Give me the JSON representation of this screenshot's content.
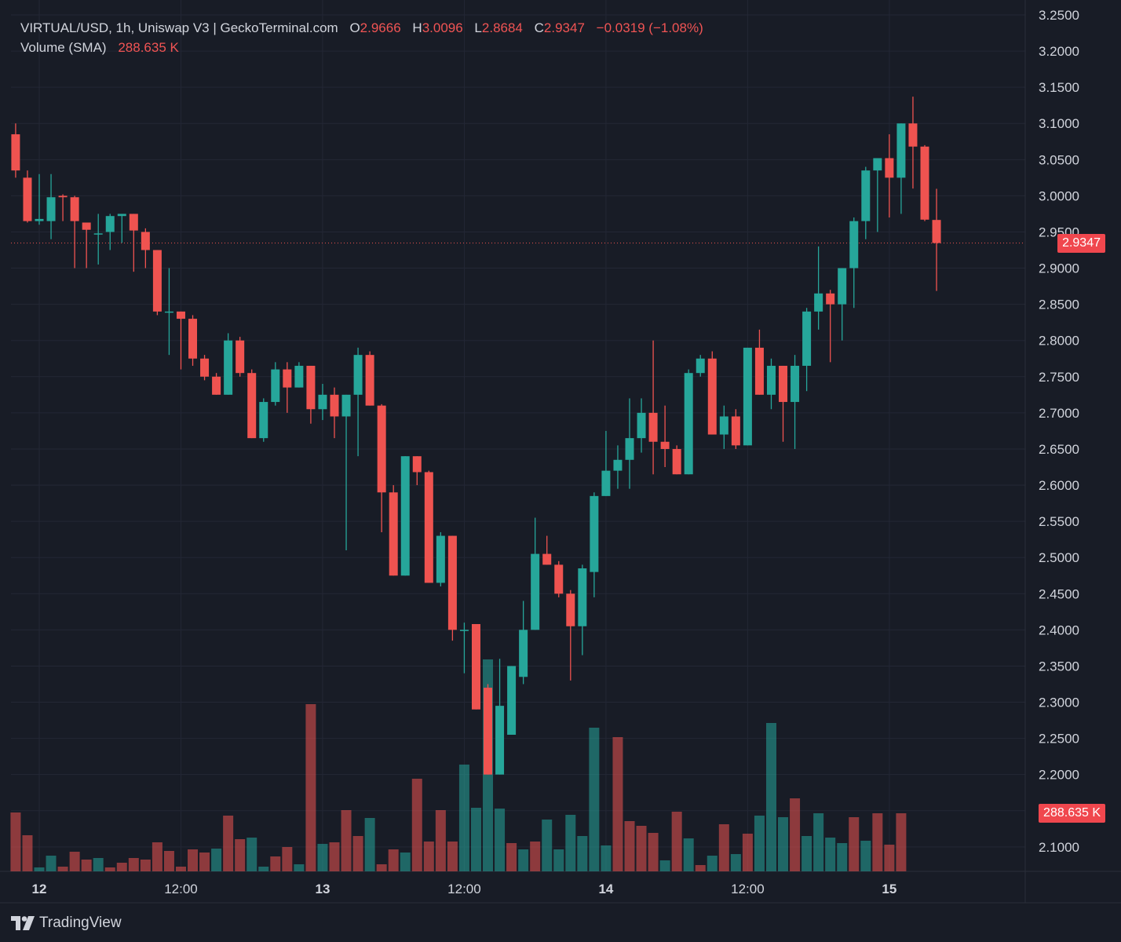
{
  "legend": {
    "title": "VIRTUAL/USD, 1h, Uniswap V3 | GeckoTerminal.com",
    "open_label": "O",
    "open_value": "2.9666",
    "high_label": "H",
    "high_value": "3.0096",
    "low_label": "L",
    "low_value": "2.8684",
    "close_label": "C",
    "close_value": "2.9347",
    "change": "−0.0319 (−1.08%)",
    "volume_label": "Volume (SMA)",
    "volume_value": "288.635 K"
  },
  "price_tag": "2.9347",
  "volume_tag": "288.635 K",
  "footer": {
    "brand": "TradingView",
    "logo_icon": "tradingview-logo-icon"
  },
  "colors": {
    "up": "#26a69a",
    "down": "#ef5350",
    "background": "#181c26",
    "grid": "#232735"
  },
  "chart_data": {
    "type": "candlestick",
    "symbol": "VIRTUAL/USD",
    "interval": "1h",
    "y_axis": {
      "range": [
        2.06,
        3.26
      ],
      "tick_labels": [
        "3.2500",
        "3.2000",
        "3.1500",
        "3.1000",
        "3.0500",
        "3.0000",
        "2.9500",
        "2.9000",
        "2.8500",
        "2.8000",
        "2.7500",
        "2.7000",
        "2.6500",
        "2.6000",
        "2.5500",
        "2.5000",
        "2.4500",
        "2.4000",
        "2.3500",
        "2.3000",
        "2.2500",
        "2.2000",
        "2.1500",
        "2.1000"
      ]
    },
    "x_axis": {
      "tick_labels": [
        "12",
        "12:00",
        "13",
        "12:00",
        "14",
        "12:00",
        "15"
      ],
      "tick_hours": [
        0,
        12,
        24,
        36,
        48,
        60,
        72
      ]
    },
    "grid": true,
    "last_price_line": 2.9347,
    "candles": [
      {
        "h": -2,
        "o": 3.085,
        "hi": 3.1,
        "lo": 3.025,
        "c": 3.035
      },
      {
        "h": -1,
        "o": 3.025,
        "hi": 3.035,
        "lo": 2.963,
        "c": 2.965
      },
      {
        "h": 0,
        "o": 2.965,
        "hi": 3.03,
        "lo": 2.96,
        "c": 2.968
      },
      {
        "h": 1,
        "o": 2.965,
        "hi": 3.03,
        "lo": 2.94,
        "c": 2.998
      },
      {
        "h": 2,
        "o": 3.0,
        "hi": 3.002,
        "lo": 2.965,
        "c": 2.998
      },
      {
        "h": 3,
        "o": 2.998,
        "hi": 3.0,
        "lo": 2.9,
        "c": 2.965
      },
      {
        "h": 4,
        "o": 2.963,
        "hi": 2.96,
        "lo": 2.9,
        "c": 2.953
      },
      {
        "h": 5,
        "o": 2.948,
        "hi": 2.975,
        "lo": 2.905,
        "c": 2.948
      },
      {
        "h": 6,
        "o": 2.95,
        "hi": 2.975,
        "lo": 2.925,
        "c": 2.972
      },
      {
        "h": 7,
        "o": 2.972,
        "hi": 2.975,
        "lo": 2.935,
        "c": 2.975
      },
      {
        "h": 8,
        "o": 2.975,
        "hi": 2.975,
        "lo": 2.895,
        "c": 2.952
      },
      {
        "h": 9,
        "o": 2.95,
        "hi": 2.955,
        "lo": 2.9,
        "c": 2.925
      },
      {
        "h": 10,
        "o": 2.925,
        "hi": 2.925,
        "lo": 2.835,
        "c": 2.84
      },
      {
        "h": 11,
        "o": 2.84,
        "hi": 2.9,
        "lo": 2.78,
        "c": 2.84
      },
      {
        "h": 12,
        "o": 2.84,
        "hi": 2.84,
        "lo": 2.76,
        "c": 2.83
      },
      {
        "h": 13,
        "o": 2.83,
        "hi": 2.835,
        "lo": 2.765,
        "c": 2.775
      },
      {
        "h": 14,
        "o": 2.775,
        "hi": 2.78,
        "lo": 2.745,
        "c": 2.75
      },
      {
        "h": 15,
        "o": 2.75,
        "hi": 2.755,
        "lo": 2.725,
        "c": 2.725
      },
      {
        "h": 16,
        "o": 2.725,
        "hi": 2.81,
        "lo": 2.725,
        "c": 2.8
      },
      {
        "h": 17,
        "o": 2.8,
        "hi": 2.805,
        "lo": 2.75,
        "c": 2.755
      },
      {
        "h": 18,
        "o": 2.755,
        "hi": 2.76,
        "lo": 2.665,
        "c": 2.665
      },
      {
        "h": 19,
        "o": 2.665,
        "hi": 2.72,
        "lo": 2.66,
        "c": 2.715
      },
      {
        "h": 20,
        "o": 2.715,
        "hi": 2.77,
        "lo": 2.71,
        "c": 2.76
      },
      {
        "h": 21,
        "o": 2.76,
        "hi": 2.77,
        "lo": 2.7,
        "c": 2.735
      },
      {
        "h": 22,
        "o": 2.735,
        "hi": 2.77,
        "lo": 2.735,
        "c": 2.765
      },
      {
        "h": 23,
        "o": 2.765,
        "hi": 2.765,
        "lo": 2.685,
        "c": 2.705
      },
      {
        "h": 24,
        "o": 2.705,
        "hi": 2.74,
        "lo": 2.69,
        "c": 2.725
      },
      {
        "h": 25,
        "o": 2.725,
        "hi": 2.735,
        "lo": 2.665,
        "c": 2.695
      },
      {
        "h": 26,
        "o": 2.695,
        "hi": 2.725,
        "lo": 2.51,
        "c": 2.725
      },
      {
        "h": 27,
        "o": 2.725,
        "hi": 2.79,
        "lo": 2.64,
        "c": 2.78
      },
      {
        "h": 28,
        "o": 2.78,
        "hi": 2.785,
        "lo": 2.71,
        "c": 2.71
      },
      {
        "h": 29,
        "o": 2.71,
        "hi": 2.712,
        "lo": 2.535,
        "c": 2.59
      },
      {
        "h": 30,
        "o": 2.59,
        "hi": 2.6,
        "lo": 2.475,
        "c": 2.475
      },
      {
        "h": 31,
        "o": 2.475,
        "hi": 2.64,
        "lo": 2.475,
        "c": 2.64
      },
      {
        "h": 32,
        "o": 2.64,
        "hi": 2.64,
        "lo": 2.6,
        "c": 2.618
      },
      {
        "h": 33,
        "o": 2.618,
        "hi": 2.62,
        "lo": 2.465,
        "c": 2.465
      },
      {
        "h": 34,
        "o": 2.465,
        "hi": 2.535,
        "lo": 2.46,
        "c": 2.53
      },
      {
        "h": 35,
        "o": 2.53,
        "hi": 2.53,
        "lo": 2.385,
        "c": 2.4
      },
      {
        "h": 36,
        "o": 2.4,
        "hi": 2.41,
        "lo": 2.34,
        "c": 2.4
      },
      {
        "h": 37,
        "o": 2.408,
        "hi": 2.408,
        "lo": 2.29,
        "c": 2.29
      },
      {
        "h": 38,
        "o": 2.32,
        "hi": 2.325,
        "lo": 2.2,
        "c": 2.2
      },
      {
        "h": 39,
        "o": 2.2,
        "hi": 2.36,
        "lo": 2.2,
        "c": 2.295
      },
      {
        "h": 40,
        "o": 2.255,
        "hi": 2.35,
        "lo": 2.255,
        "c": 2.35
      },
      {
        "h": 41,
        "o": 2.335,
        "hi": 2.44,
        "lo": 2.325,
        "c": 2.4
      },
      {
        "h": 42,
        "o": 2.4,
        "hi": 2.555,
        "lo": 2.4,
        "c": 2.505
      },
      {
        "h": 43,
        "o": 2.505,
        "hi": 2.53,
        "lo": 2.49,
        "c": 2.49
      },
      {
        "h": 44,
        "o": 2.49,
        "hi": 2.495,
        "lo": 2.445,
        "c": 2.45
      },
      {
        "h": 45,
        "o": 2.45,
        "hi": 2.455,
        "lo": 2.33,
        "c": 2.405
      },
      {
        "h": 46,
        "o": 2.405,
        "hi": 2.49,
        "lo": 2.365,
        "c": 2.485
      },
      {
        "h": 47,
        "o": 2.48,
        "hi": 2.59,
        "lo": 2.445,
        "c": 2.585
      },
      {
        "h": 48,
        "o": 2.585,
        "hi": 2.675,
        "lo": 2.585,
        "c": 2.62
      },
      {
        "h": 49,
        "o": 2.62,
        "hi": 2.655,
        "lo": 2.595,
        "c": 2.635
      },
      {
        "h": 50,
        "o": 2.635,
        "hi": 2.72,
        "lo": 2.595,
        "c": 2.665
      },
      {
        "h": 51,
        "o": 2.665,
        "hi": 2.72,
        "lo": 2.645,
        "c": 2.7
      },
      {
        "h": 52,
        "o": 2.7,
        "hi": 2.8,
        "lo": 2.615,
        "c": 2.66
      },
      {
        "h": 53,
        "o": 2.66,
        "hi": 2.71,
        "lo": 2.625,
        "c": 2.65
      },
      {
        "h": 54,
        "o": 2.65,
        "hi": 2.655,
        "lo": 2.615,
        "c": 2.615
      },
      {
        "h": 55,
        "o": 2.615,
        "hi": 2.76,
        "lo": 2.615,
        "c": 2.755
      },
      {
        "h": 56,
        "o": 2.755,
        "hi": 2.78,
        "lo": 2.75,
        "c": 2.775
      },
      {
        "h": 57,
        "o": 2.775,
        "hi": 2.785,
        "lo": 2.67,
        "c": 2.67
      },
      {
        "h": 58,
        "o": 2.67,
        "hi": 2.71,
        "lo": 2.65,
        "c": 2.695
      },
      {
        "h": 59,
        "o": 2.695,
        "hi": 2.705,
        "lo": 2.65,
        "c": 2.655
      },
      {
        "h": 60,
        "o": 2.655,
        "hi": 2.79,
        "lo": 2.655,
        "c": 2.79
      },
      {
        "h": 61,
        "o": 2.79,
        "hi": 2.815,
        "lo": 2.725,
        "c": 2.725
      },
      {
        "h": 62,
        "o": 2.725,
        "hi": 2.775,
        "lo": 2.705,
        "c": 2.765
      },
      {
        "h": 63,
        "o": 2.765,
        "hi": 2.765,
        "lo": 2.66,
        "c": 2.715
      },
      {
        "h": 64,
        "o": 2.715,
        "hi": 2.78,
        "lo": 2.65,
        "c": 2.765
      },
      {
        "h": 65,
        "o": 2.765,
        "hi": 2.845,
        "lo": 2.73,
        "c": 2.84
      },
      {
        "h": 66,
        "o": 2.84,
        "hi": 2.93,
        "lo": 2.815,
        "c": 2.865
      },
      {
        "h": 67,
        "o": 2.865,
        "hi": 2.87,
        "lo": 2.77,
        "c": 2.85
      },
      {
        "h": 68,
        "o": 2.85,
        "hi": 2.895,
        "lo": 2.8,
        "c": 2.9
      },
      {
        "h": 69,
        "o": 2.9,
        "hi": 2.97,
        "lo": 2.845,
        "c": 2.965
      },
      {
        "h": 70,
        "o": 2.965,
        "hi": 3.04,
        "lo": 2.94,
        "c": 3.035
      },
      {
        "h": 71,
        "o": 3.035,
        "hi": 3.05,
        "lo": 2.95,
        "c": 3.052
      },
      {
        "h": 72,
        "o": 3.052,
        "hi": 3.085,
        "lo": 2.97,
        "c": 3.025
      },
      {
        "h": 73,
        "o": 3.025,
        "hi": 3.1,
        "lo": 2.975,
        "c": 3.1
      },
      {
        "h": 74,
        "o": 3.1,
        "hi": 3.137,
        "lo": 3.01,
        "c": 3.068
      },
      {
        "h": 75,
        "o": 3.068,
        "hi": 3.07,
        "lo": 2.965,
        "c": 2.967
      },
      {
        "h": 76,
        "o": 2.9666,
        "hi": 3.0096,
        "lo": 2.8684,
        "c": 2.9347
      }
    ],
    "volume": {
      "series_name": "Volume (SMA)",
      "last_value": "288.635 K",
      "max_value": 1000,
      "bars": [
        {
          "h": -2,
          "v": 375,
          "dir": "down"
        },
        {
          "h": -1,
          "v": 230,
          "dir": "down"
        },
        {
          "h": 0,
          "v": 25,
          "dir": "up"
        },
        {
          "h": 1,
          "v": 100,
          "dir": "up"
        },
        {
          "h": 2,
          "v": 30,
          "dir": "down"
        },
        {
          "h": 3,
          "v": 125,
          "dir": "down"
        },
        {
          "h": 4,
          "v": 75,
          "dir": "down"
        },
        {
          "h": 5,
          "v": 85,
          "dir": "up"
        },
        {
          "h": 6,
          "v": 25,
          "dir": "down"
        },
        {
          "h": 7,
          "v": 55,
          "dir": "down"
        },
        {
          "h": 8,
          "v": 85,
          "dir": "down"
        },
        {
          "h": 9,
          "v": 75,
          "dir": "down"
        },
        {
          "h": 10,
          "v": 185,
          "dir": "down"
        },
        {
          "h": 11,
          "v": 130,
          "dir": "down"
        },
        {
          "h": 12,
          "v": 30,
          "dir": "down"
        },
        {
          "h": 13,
          "v": 140,
          "dir": "down"
        },
        {
          "h": 14,
          "v": 120,
          "dir": "down"
        },
        {
          "h": 15,
          "v": 145,
          "dir": "up"
        },
        {
          "h": 16,
          "v": 355,
          "dir": "down"
        },
        {
          "h": 17,
          "v": 205,
          "dir": "down"
        },
        {
          "h": 18,
          "v": 215,
          "dir": "up"
        },
        {
          "h": 19,
          "v": 30,
          "dir": "up"
        },
        {
          "h": 20,
          "v": 95,
          "dir": "down"
        },
        {
          "h": 21,
          "v": 155,
          "dir": "down"
        },
        {
          "h": 22,
          "v": 45,
          "dir": "up"
        },
        {
          "h": 23,
          "v": 1065,
          "dir": "down"
        },
        {
          "h": 24,
          "v": 175,
          "dir": "up"
        },
        {
          "h": 25,
          "v": 185,
          "dir": "down"
        },
        {
          "h": 26,
          "v": 390,
          "dir": "down"
        },
        {
          "h": 27,
          "v": 225,
          "dir": "down"
        },
        {
          "h": 28,
          "v": 340,
          "dir": "up"
        },
        {
          "h": 29,
          "v": 45,
          "dir": "down"
        },
        {
          "h": 30,
          "v": 140,
          "dir": "down"
        },
        {
          "h": 31,
          "v": 120,
          "dir": "up"
        },
        {
          "h": 32,
          "v": 590,
          "dir": "down"
        },
        {
          "h": 33,
          "v": 190,
          "dir": "down"
        },
        {
          "h": 34,
          "v": 390,
          "dir": "down"
        },
        {
          "h": 35,
          "v": 190,
          "dir": "down"
        },
        {
          "h": 36,
          "v": 680,
          "dir": "up"
        },
        {
          "h": 37,
          "v": 405,
          "dir": "up"
        },
        {
          "h": 38,
          "v": 1350,
          "dir": "up"
        },
        {
          "h": 39,
          "v": 400,
          "dir": "up"
        },
        {
          "h": 40,
          "v": 180,
          "dir": "down"
        },
        {
          "h": 41,
          "v": 140,
          "dir": "up"
        },
        {
          "h": 42,
          "v": 190,
          "dir": "down"
        },
        {
          "h": 43,
          "v": 330,
          "dir": "up"
        },
        {
          "h": 44,
          "v": 140,
          "dir": "up"
        },
        {
          "h": 45,
          "v": 360,
          "dir": "up"
        },
        {
          "h": 46,
          "v": 225,
          "dir": "up"
        },
        {
          "h": 47,
          "v": 915,
          "dir": "up"
        },
        {
          "h": 48,
          "v": 165,
          "dir": "up"
        },
        {
          "h": 49,
          "v": 855,
          "dir": "down"
        },
        {
          "h": 50,
          "v": 320,
          "dir": "down"
        },
        {
          "h": 51,
          "v": 290,
          "dir": "down"
        },
        {
          "h": 52,
          "v": 245,
          "dir": "down"
        },
        {
          "h": 53,
          "v": 70,
          "dir": "up"
        },
        {
          "h": 54,
          "v": 380,
          "dir": "down"
        },
        {
          "h": 55,
          "v": 210,
          "dir": "up"
        },
        {
          "h": 56,
          "v": 40,
          "dir": "down"
        },
        {
          "h": 57,
          "v": 100,
          "dir": "up"
        },
        {
          "h": 58,
          "v": 300,
          "dir": "down"
        },
        {
          "h": 59,
          "v": 110,
          "dir": "up"
        },
        {
          "h": 60,
          "v": 240,
          "dir": "down"
        },
        {
          "h": 61,
          "v": 355,
          "dir": "up"
        },
        {
          "h": 62,
          "v": 945,
          "dir": "up"
        },
        {
          "h": 63,
          "v": 345,
          "dir": "up"
        },
        {
          "h": 64,
          "v": 465,
          "dir": "down"
        },
        {
          "h": 65,
          "v": 225,
          "dir": "up"
        },
        {
          "h": 66,
          "v": 370,
          "dir": "up"
        },
        {
          "h": 67,
          "v": 215,
          "dir": "up"
        },
        {
          "h": 68,
          "v": 180,
          "dir": "up"
        },
        {
          "h": 69,
          "v": 345,
          "dir": "down"
        },
        {
          "h": 70,
          "v": 195,
          "dir": "up"
        },
        {
          "h": 71,
          "v": 370,
          "dir": "down"
        },
        {
          "h": 72,
          "v": 170,
          "dir": "down"
        },
        {
          "h": 73,
          "v": 370,
          "dir": "down"
        }
      ]
    }
  }
}
